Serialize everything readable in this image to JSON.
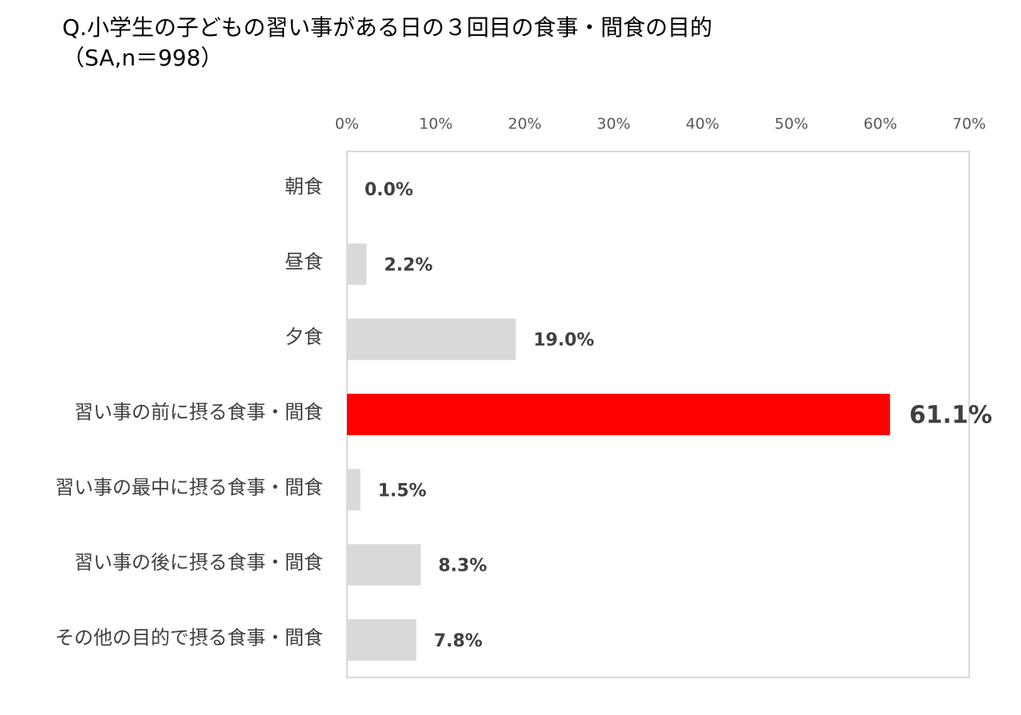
{
  "chart_data": {
    "type": "barh",
    "title": "Q.小学生の子どもの習い事がある日の３回目の食事・間食の目的",
    "subtitle": "（SA,n＝998）",
    "categories": [
      "朝食",
      "昼食",
      "夕食",
      "習い事の前に摂る食事・間食",
      "習い事の最中に摂る食事・間食",
      "習い事の後に摂る食事・間食",
      "その他の目的で摂る食事・間食"
    ],
    "values": [
      0.0,
      2.2,
      19.0,
      61.1,
      1.5,
      8.3,
      7.8
    ],
    "value_labels": [
      "0.0%",
      "2.2%",
      "19.0%",
      "61.1%",
      "1.5%",
      "8.3%",
      "7.8%"
    ],
    "colors": [
      "#d9d9d9",
      "#d9d9d9",
      "#d9d9d9",
      "#ff0000",
      "#d9d9d9",
      "#d9d9d9",
      "#d9d9d9"
    ],
    "xlim": [
      0,
      70
    ],
    "xticks": [
      {
        "value": 0,
        "label": "0%"
      },
      {
        "value": 10,
        "label": "10%"
      },
      {
        "value": 20,
        "label": "20%"
      },
      {
        "value": 30,
        "label": "30%"
      },
      {
        "value": 40,
        "label": "40%"
      },
      {
        "value": 50,
        "label": "50%"
      },
      {
        "value": 60,
        "label": "60%"
      },
      {
        "value": 70,
        "label": "70%"
      }
    ],
    "grid": false
  }
}
